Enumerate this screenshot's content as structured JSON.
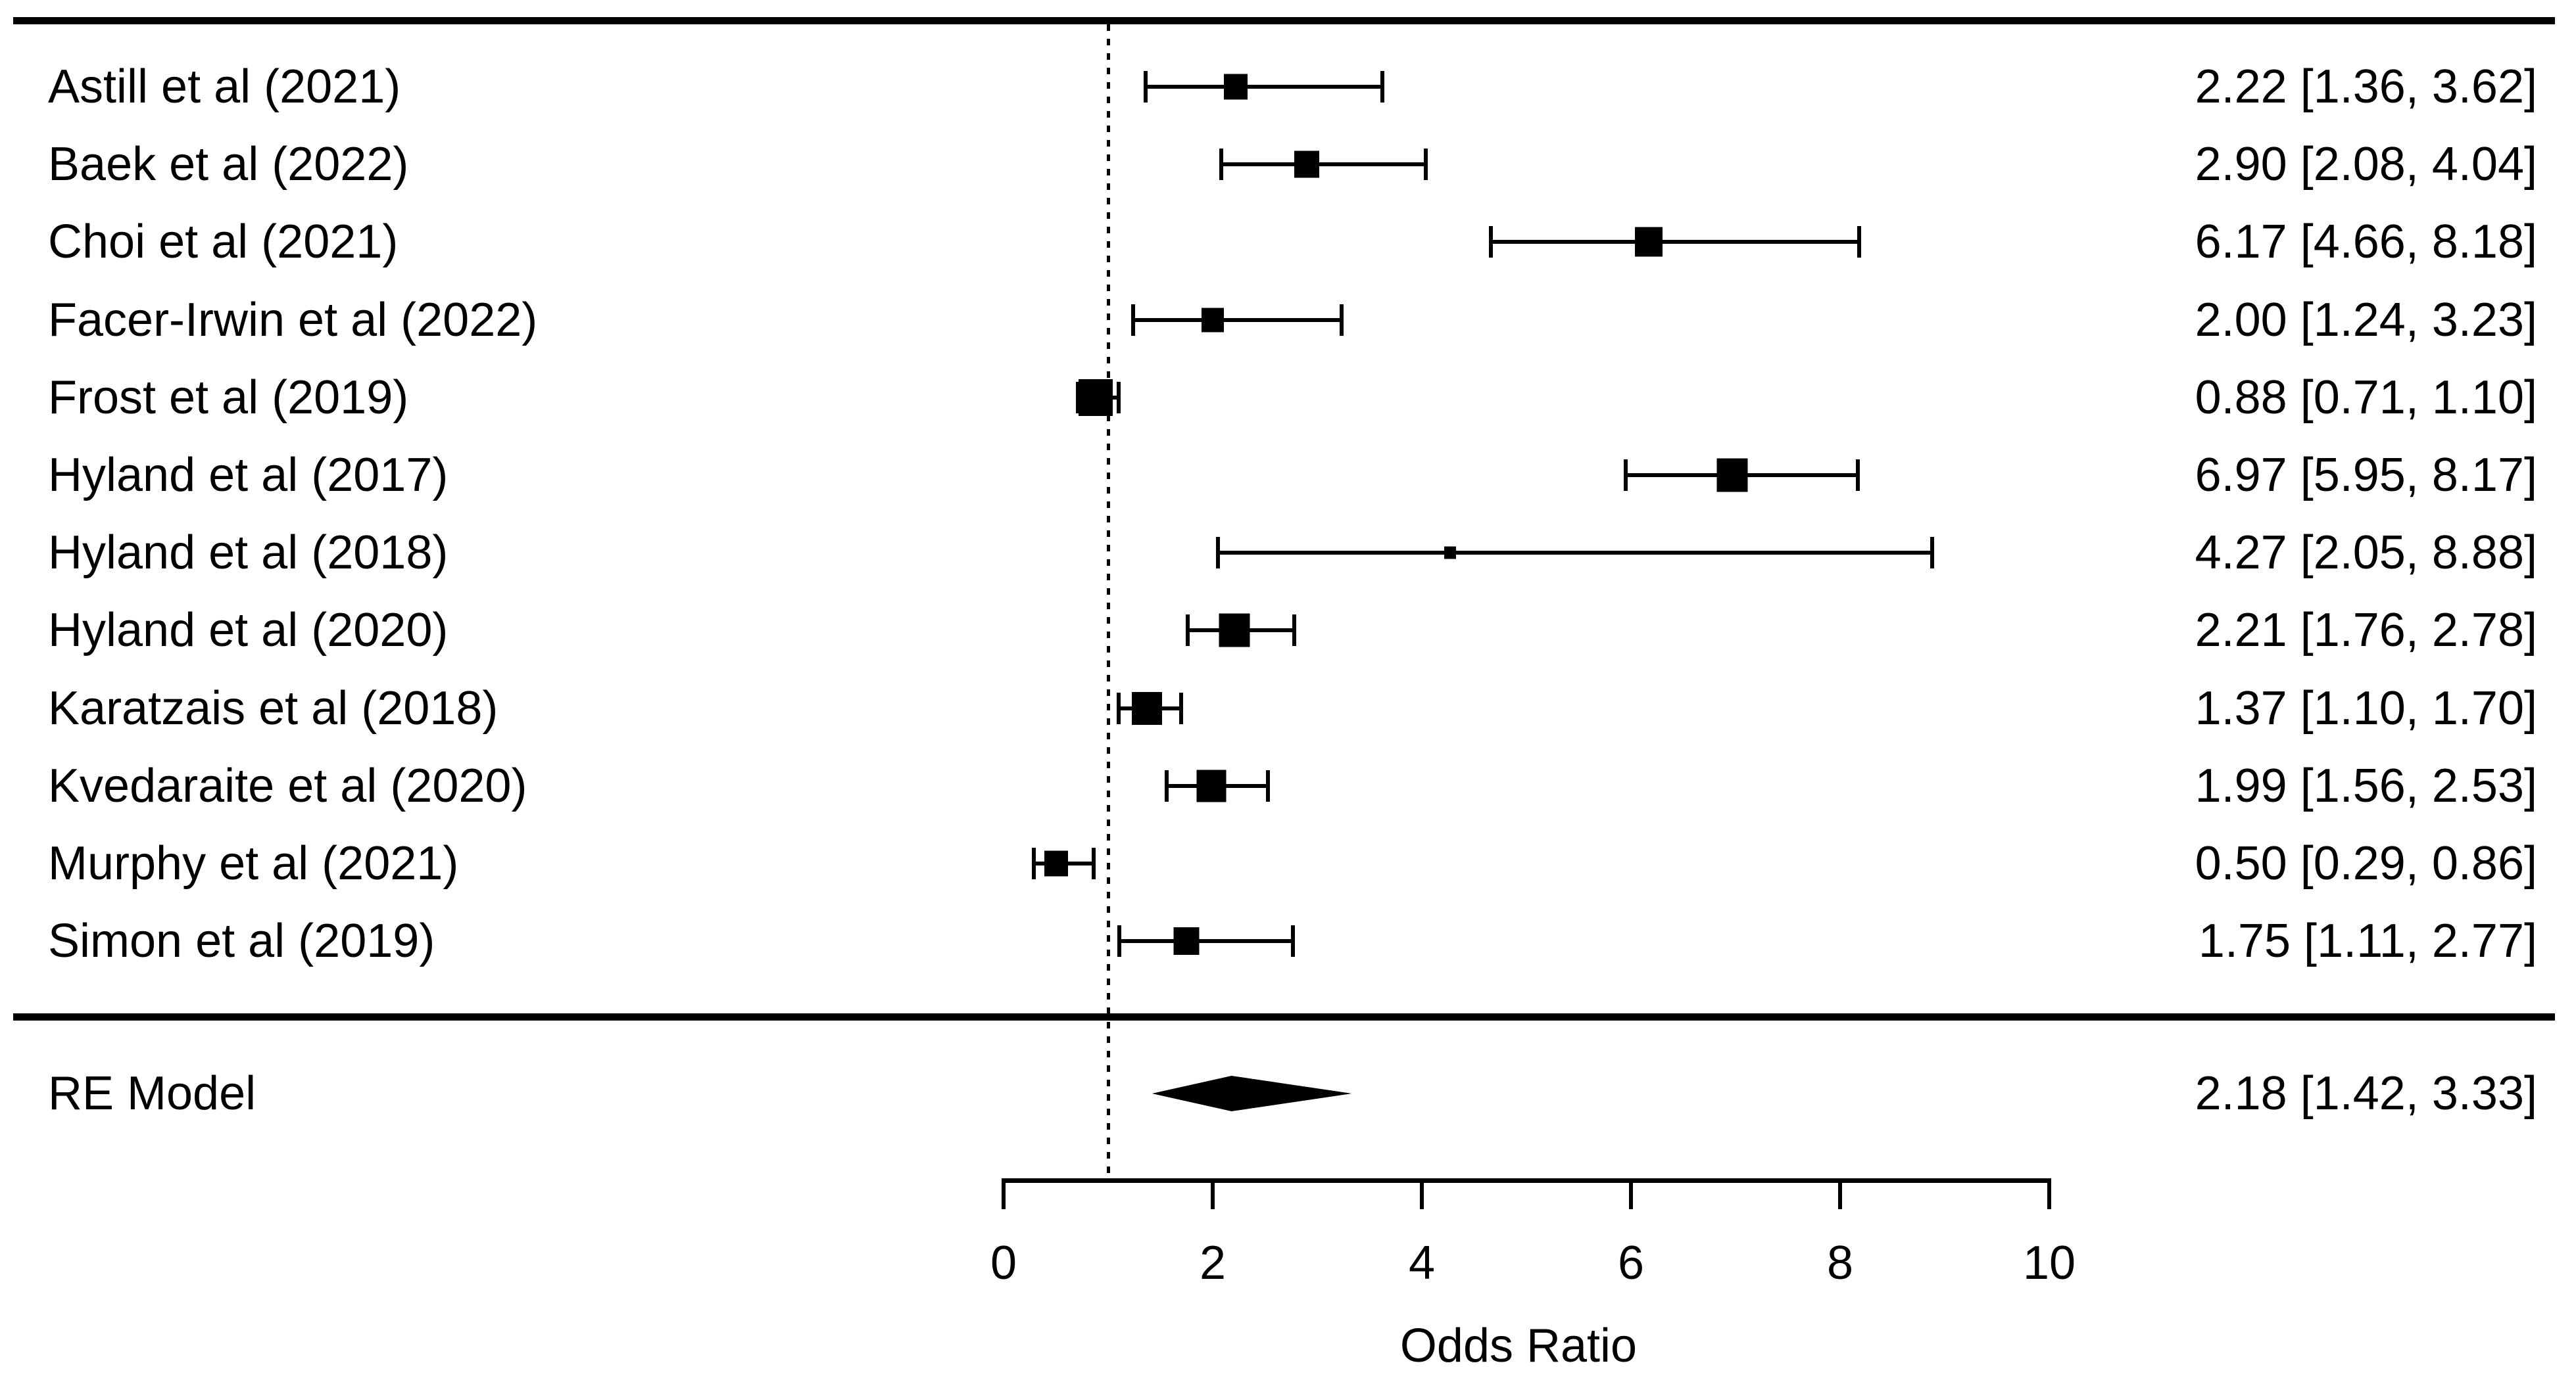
{
  "chart_data": {
    "type": "scatter",
    "subtype": "forest-plot",
    "title": "",
    "xlabel": "Odds Ratio",
    "x_ticks": [
      0,
      2,
      4,
      6,
      8,
      10
    ],
    "xlim": [
      0,
      10
    ],
    "reference_line_x": 1,
    "grid": false,
    "studies": [
      {
        "label": "Astill et al (2021)",
        "or": 2.22,
        "ci_low": 1.36,
        "ci_high": 3.62,
        "display": "2.22 [1.36, 3.62]",
        "size": 36
      },
      {
        "label": "Baek et al (2022)",
        "or": 2.9,
        "ci_low": 2.08,
        "ci_high": 4.04,
        "display": "2.90 [2.08, 4.04]",
        "size": 38
      },
      {
        "label": "Choi et al (2021)",
        "or": 6.17,
        "ci_low": 4.66,
        "ci_high": 8.18,
        "display": "6.17 [4.66, 8.18]",
        "size": 42
      },
      {
        "label": "Facer-Irwin et al (2022)",
        "or": 2.0,
        "ci_low": 1.24,
        "ci_high": 3.23,
        "display": "2.00 [1.24, 3.23]",
        "size": 34
      },
      {
        "label": "Frost et al (2019)",
        "or": 0.88,
        "ci_low": 0.71,
        "ci_high": 1.1,
        "display": "0.88 [0.71, 1.10]",
        "size": 52
      },
      {
        "label": "Hyland et al (2017)",
        "or": 6.97,
        "ci_low": 5.95,
        "ci_high": 8.17,
        "display": "6.97 [5.95, 8.17]",
        "size": 47
      },
      {
        "label": "Hyland et al (2018)",
        "or": 4.27,
        "ci_low": 2.05,
        "ci_high": 8.88,
        "display": "4.27 [2.05, 8.88]",
        "size": 18
      },
      {
        "label": "Hyland et al (2020)",
        "or": 2.21,
        "ci_low": 1.76,
        "ci_high": 2.78,
        "display": "2.21 [1.76, 2.78]",
        "size": 47
      },
      {
        "label": "Karatzais et al (2018)",
        "or": 1.37,
        "ci_low": 1.1,
        "ci_high": 1.7,
        "display": "1.37 [1.10, 1.70]",
        "size": 46
      },
      {
        "label": "Kvedaraite et al (2020)",
        "or": 1.99,
        "ci_low": 1.56,
        "ci_high": 2.53,
        "display": "1.99 [1.56, 2.53]",
        "size": 45
      },
      {
        "label": "Murphy et al (2021)",
        "or": 0.5,
        "ci_low": 0.29,
        "ci_high": 0.86,
        "display": "0.50 [0.29, 0.86]",
        "size": 36
      },
      {
        "label": "Simon et al (2019)",
        "or": 1.75,
        "ci_low": 1.11,
        "ci_high": 2.77,
        "display": "1.75 [1.11, 2.77]",
        "size": 39
      }
    ],
    "summary": {
      "label": "RE Model",
      "or": 2.18,
      "ci_low": 1.42,
      "ci_high": 3.33,
      "display": "2.18 [1.42, 3.33]"
    },
    "colors": {
      "foreground": "#000000",
      "background": "#ffffff"
    }
  }
}
